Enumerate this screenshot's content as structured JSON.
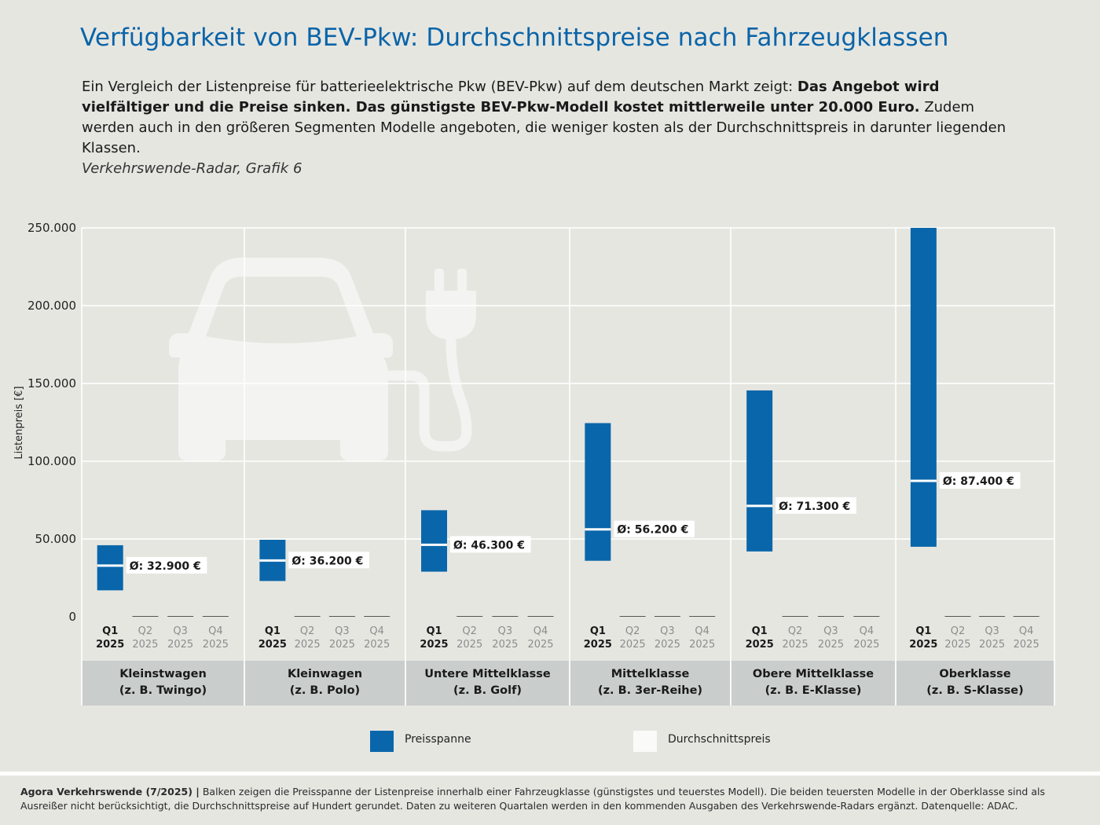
{
  "header": {
    "title": "Verfügbarkeit von BEV-Pkw: Durchschnittspreise nach Fahrzeugklassen",
    "intro_plain": "Ein Vergleich der Listenpreise für batterieelektrische Pkw (BEV-Pkw) auf dem deutschen Markt zeigt: ",
    "intro_bold": "Das Angebot wird vielfältiger und die Preise sinken. Das günstigste BEV-Pkw-Modell kostet mittlerweile unter 20.000 Euro.",
    "intro_tail": " Zudem werden auch in den größeren Segmenten Modelle angeboten, die weniger kosten als der Durchschnittspreis in darunter liegenden Klassen.",
    "source_line": "Verkehrswende-Radar, Grafik 6"
  },
  "chart_data": {
    "type": "bar",
    "subtype": "floating-range",
    "ylabel": "Listenpreis [€]",
    "ylim": [
      0,
      250000
    ],
    "yticks": [
      0,
      50000,
      100000,
      150000,
      200000,
      250000
    ],
    "ytick_labels": [
      "0",
      "50.000",
      "100.000",
      "150.000",
      "200.000",
      "250.000"
    ],
    "quarters": [
      {
        "q": "Q1",
        "year": "2025"
      },
      {
        "q": "Q2",
        "year": "2025"
      },
      {
        "q": "Q3",
        "year": "2025"
      },
      {
        "q": "Q4",
        "year": "2025"
      }
    ],
    "groups": [
      {
        "name": "Kleinstwagen",
        "example": "(z. B. Twingo)",
        "min": 17000,
        "max": 46000,
        "avg": 32900,
        "avg_label": "Ø: 32.900 €"
      },
      {
        "name": "Kleinwagen",
        "example": "(z. B. Polo)",
        "min": 23000,
        "max": 49500,
        "avg": 36200,
        "avg_label": "Ø: 36.200 €"
      },
      {
        "name": "Untere Mittelklasse",
        "example": "(z. B. Golf)",
        "min": 29000,
        "max": 68500,
        "avg": 46300,
        "avg_label": "Ø: 46.300 €"
      },
      {
        "name": "Mittelklasse",
        "example": "(z. B. 3er-Reihe)",
        "min": 36000,
        "max": 124500,
        "avg": 56200,
        "avg_label": "Ø: 56.200 €"
      },
      {
        "name": "Obere Mittelklasse",
        "example": "(z. B. E-Klasse)",
        "min": 42000,
        "max": 145500,
        "avg": 71300,
        "avg_label": "Ø: 71.300 €"
      },
      {
        "name": "Oberklasse",
        "example": "(z. B. S-Klasse)",
        "min": 45000,
        "max": 250000,
        "avg": 87400,
        "avg_label": "Ø: 87.400 €"
      }
    ],
    "legend": [
      {
        "label": "Preisspanne",
        "color": "#0a66aa"
      },
      {
        "label": "Durchschnittspreis",
        "color": "#fafaf8"
      }
    ],
    "colors": {
      "bar": "#0a66aa",
      "avg_line": "#ffffff",
      "grid": "#ffffff",
      "category_band": "#c9cdcc",
      "active_quarter": "#1a1a1a",
      "inactive_quarter": "#8c8c8c"
    }
  },
  "footer": {
    "source_bold": "Agora Verkehrswende (7/2025) |",
    "text": " Balken zeigen die Preisspanne der Listenpreise innerhalb einer Fahrzeugklasse (günstigstes und teuerstes Modell). Die beiden teuersten Modelle in der Oberklasse sind als Ausreißer nicht berücksichtigt, die Durchschnittspreise auf Hundert gerundet. Daten zu weiteren Quartalen werden in den kommenden Ausgaben des Verkehrswende-Radars ergänzt. Datenquelle: ADAC."
  }
}
